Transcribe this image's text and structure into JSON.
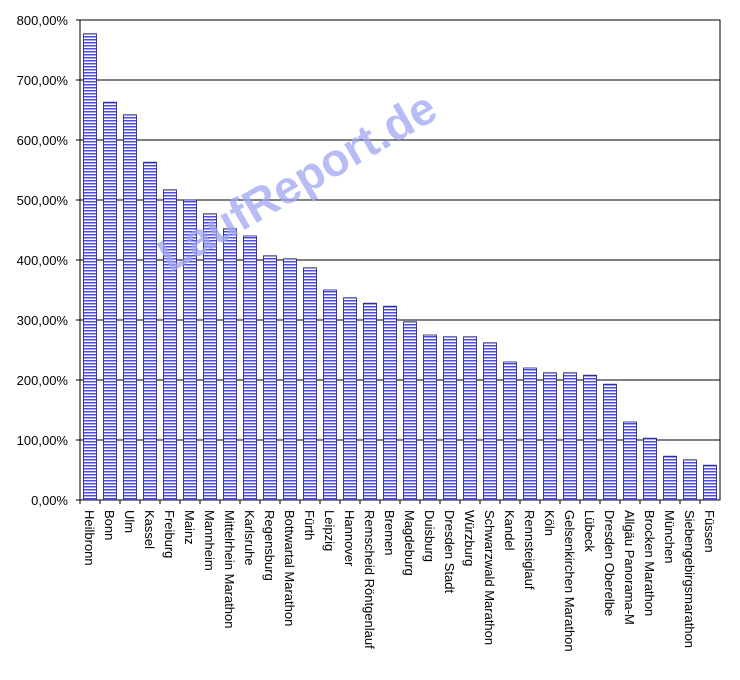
{
  "chart_data": {
    "type": "bar",
    "watermark": "LaufReport.de",
    "categories": [
      "Heilbronn",
      "Bonn",
      "Ulm",
      "Kassel",
      "Freiburg",
      "Mainz",
      "Mannheim",
      "Mittelrhein Marathon",
      "Karlsruhe",
      "Regensburg",
      "Bottwartal Marathon",
      "Fürth",
      "Leipzig",
      "Hannover",
      "Remscheid Röntgenlauf",
      "Bremen",
      "Magdeburg",
      "Duisburg",
      "Dresden Stadt",
      "Würzburg",
      "Schwarzwald Marathon",
      "Kandel",
      "Rennsteiglauf",
      "Köln",
      "Gelsenkirchen Marathon",
      "Lübeck",
      "Dresden Oberelbe",
      "Allgäu Panorama-M",
      "Brocken Marathon",
      "München",
      "Siebengebirgsmarathon",
      "Füssen"
    ],
    "values": [
      777,
      663,
      642,
      563,
      517,
      500,
      477,
      452,
      440,
      407,
      402,
      387,
      350,
      337,
      328,
      323,
      297,
      275,
      272,
      272,
      262,
      230,
      220,
      212,
      212,
      208,
      193,
      130,
      103,
      73,
      67,
      58
    ],
    "color": "#4a4af0",
    "ylim": [
      0,
      800
    ],
    "yticks": [
      {
        "value": 0,
        "label": "0,00%"
      },
      {
        "value": 100,
        "label": "100,00%"
      },
      {
        "value": 200,
        "label": "200,00%"
      },
      {
        "value": 300,
        "label": "300,00%"
      },
      {
        "value": 400,
        "label": "400,00%"
      },
      {
        "value": 500,
        "label": "500,00%"
      },
      {
        "value": 600,
        "label": "600,00%"
      },
      {
        "value": 700,
        "label": "700,00%"
      },
      {
        "value": 800,
        "label": "800,00%"
      }
    ],
    "grid": true
  }
}
